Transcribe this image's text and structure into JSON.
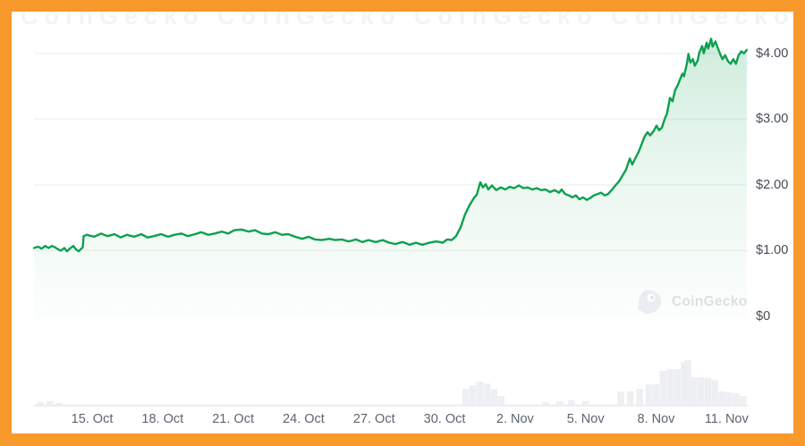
{
  "watermark": {
    "text": "CoinGecko"
  },
  "top_tile": {
    "text": "CoinGecko"
  },
  "colors": {
    "frame_border": "#f8992c",
    "line": "#0ca04f",
    "fill_top": "rgba(12,160,79,0.20)",
    "fill_mid": "rgba(12,160,79,0.09)",
    "fill_bottom": "rgba(12,160,79,0.01)",
    "gridline": "#f3f4f6",
    "volume_bar": "#edeff2",
    "y_label": "#464c55",
    "x_label": "#5e6570",
    "watermark_text": "#dcdfe4",
    "watermark_icon": "#e9edf0"
  },
  "chart_data": {
    "type": "area",
    "title": "",
    "xlabel": "",
    "ylabel": "",
    "legend": "none",
    "grid": "horizontal-faint",
    "y_axis_side": "right",
    "x_range_days": [
      -2.5,
      28.0
    ],
    "y_range": [
      0,
      4.6
    ],
    "y_ticks": [
      {
        "value": 0,
        "label": "$0"
      },
      {
        "value": 1,
        "label": "$1.00"
      },
      {
        "value": 2,
        "label": "$2.00"
      },
      {
        "value": 3,
        "label": "$3.00"
      },
      {
        "value": 4,
        "label": "$4.00"
      }
    ],
    "x_ticks": [
      {
        "t": 0,
        "label": "15. Oct"
      },
      {
        "t": 3,
        "label": "18. Oct"
      },
      {
        "t": 6,
        "label": "21. Oct"
      },
      {
        "t": 9,
        "label": "24. Oct"
      },
      {
        "t": 12,
        "label": "27. Oct"
      },
      {
        "t": 15,
        "label": "30. Oct"
      },
      {
        "t": 18,
        "label": "2. Nov"
      },
      {
        "t": 21,
        "label": "5. Nov"
      },
      {
        "t": 24,
        "label": "8. Nov"
      },
      {
        "t": 27,
        "label": "11. Nov"
      }
    ],
    "series": [
      {
        "name": "price-usd",
        "points": [
          [
            -2.47,
            1.04
          ],
          [
            -2.3,
            1.06
          ],
          [
            -2.15,
            1.03
          ],
          [
            -2.0,
            1.07
          ],
          [
            -1.85,
            1.04
          ],
          [
            -1.71,
            1.07
          ],
          [
            -1.58,
            1.05
          ],
          [
            -1.45,
            1.02
          ],
          [
            -1.33,
            1.0
          ],
          [
            -1.18,
            1.04
          ],
          [
            -1.07,
            0.99
          ],
          [
            -0.95,
            1.03
          ],
          [
            -0.8,
            1.07
          ],
          [
            -0.69,
            1.02
          ],
          [
            -0.57,
            0.99
          ],
          [
            -0.46,
            1.03
          ],
          [
            -0.4,
            1.05
          ],
          [
            -0.36,
            1.22
          ],
          [
            -0.23,
            1.24
          ],
          [
            0.08,
            1.21
          ],
          [
            0.38,
            1.26
          ],
          [
            0.65,
            1.22
          ],
          [
            0.95,
            1.25
          ],
          [
            1.22,
            1.2
          ],
          [
            1.48,
            1.24
          ],
          [
            1.79,
            1.21
          ],
          [
            2.09,
            1.25
          ],
          [
            2.36,
            1.2
          ],
          [
            2.63,
            1.22
          ],
          [
            2.93,
            1.25
          ],
          [
            3.24,
            1.21
          ],
          [
            3.5,
            1.24
          ],
          [
            3.81,
            1.26
          ],
          [
            4.07,
            1.22
          ],
          [
            4.38,
            1.25
          ],
          [
            4.64,
            1.28
          ],
          [
            4.95,
            1.24
          ],
          [
            5.21,
            1.26
          ],
          [
            5.52,
            1.29
          ],
          [
            5.79,
            1.26
          ],
          [
            6.05,
            1.31
          ],
          [
            6.36,
            1.32
          ],
          [
            6.66,
            1.29
          ],
          [
            6.93,
            1.31
          ],
          [
            7.23,
            1.26
          ],
          [
            7.5,
            1.25
          ],
          [
            7.8,
            1.28
          ],
          [
            8.07,
            1.24
          ],
          [
            8.34,
            1.25
          ],
          [
            8.64,
            1.21
          ],
          [
            8.94,
            1.18
          ],
          [
            9.21,
            1.21
          ],
          [
            9.48,
            1.17
          ],
          [
            9.78,
            1.16
          ],
          [
            10.09,
            1.18
          ],
          [
            10.35,
            1.16
          ],
          [
            10.62,
            1.17
          ],
          [
            10.92,
            1.14
          ],
          [
            11.23,
            1.17
          ],
          [
            11.5,
            1.13
          ],
          [
            11.76,
            1.16
          ],
          [
            12.07,
            1.13
          ],
          [
            12.37,
            1.16
          ],
          [
            12.64,
            1.12
          ],
          [
            12.9,
            1.1
          ],
          [
            13.21,
            1.13
          ],
          [
            13.51,
            1.09
          ],
          [
            13.78,
            1.12
          ],
          [
            14.05,
            1.09
          ],
          [
            14.35,
            1.12
          ],
          [
            14.65,
            1.14
          ],
          [
            14.92,
            1.12
          ],
          [
            15.11,
            1.17
          ],
          [
            15.3,
            1.16
          ],
          [
            15.49,
            1.22
          ],
          [
            15.68,
            1.35
          ],
          [
            15.87,
            1.55
          ],
          [
            16.06,
            1.69
          ],
          [
            16.25,
            1.8
          ],
          [
            16.37,
            1.85
          ],
          [
            16.52,
            2.04
          ],
          [
            16.63,
            1.96
          ],
          [
            16.75,
            2.01
          ],
          [
            16.86,
            1.93
          ],
          [
            17.01,
            1.99
          ],
          [
            17.2,
            1.92
          ],
          [
            17.39,
            1.96
          ],
          [
            17.58,
            1.93
          ],
          [
            17.77,
            1.97
          ],
          [
            17.96,
            1.95
          ],
          [
            18.16,
            1.99
          ],
          [
            18.35,
            1.95
          ],
          [
            18.54,
            1.96
          ],
          [
            18.73,
            1.93
          ],
          [
            18.92,
            1.95
          ],
          [
            19.11,
            1.92
          ],
          [
            19.3,
            1.93
          ],
          [
            19.49,
            1.89
          ],
          [
            19.68,
            1.92
          ],
          [
            19.87,
            1.88
          ],
          [
            19.98,
            1.93
          ],
          [
            20.13,
            1.86
          ],
          [
            20.29,
            1.84
          ],
          [
            20.44,
            1.81
          ],
          [
            20.59,
            1.84
          ],
          [
            20.74,
            1.78
          ],
          [
            20.89,
            1.81
          ],
          [
            21.05,
            1.77
          ],
          [
            21.2,
            1.8
          ],
          [
            21.35,
            1.84
          ],
          [
            21.51,
            1.86
          ],
          [
            21.66,
            1.88
          ],
          [
            21.81,
            1.84
          ],
          [
            21.96,
            1.86
          ],
          [
            22.11,
            1.92
          ],
          [
            22.27,
            1.99
          ],
          [
            22.42,
            2.05
          ],
          [
            22.57,
            2.14
          ],
          [
            22.72,
            2.23
          ],
          [
            22.88,
            2.4
          ],
          [
            22.99,
            2.31
          ],
          [
            23.14,
            2.42
          ],
          [
            23.26,
            2.5
          ],
          [
            23.41,
            2.64
          ],
          [
            23.52,
            2.74
          ],
          [
            23.64,
            2.8
          ],
          [
            23.75,
            2.75
          ],
          [
            23.9,
            2.82
          ],
          [
            24.02,
            2.9
          ],
          [
            24.13,
            2.83
          ],
          [
            24.25,
            2.87
          ],
          [
            24.36,
            2.99
          ],
          [
            24.47,
            3.09
          ],
          [
            24.59,
            3.32
          ],
          [
            24.7,
            3.27
          ],
          [
            24.81,
            3.44
          ],
          [
            24.93,
            3.52
          ],
          [
            25.04,
            3.62
          ],
          [
            25.12,
            3.69
          ],
          [
            25.19,
            3.65
          ],
          [
            25.31,
            3.84
          ],
          [
            25.38,
            3.99
          ],
          [
            25.46,
            3.86
          ],
          [
            25.57,
            3.91
          ],
          [
            25.65,
            3.81
          ],
          [
            25.77,
            3.89
          ],
          [
            25.84,
            4.01
          ],
          [
            25.96,
            4.11
          ],
          [
            26.03,
            4.0
          ],
          [
            26.15,
            4.16
          ],
          [
            26.22,
            4.07
          ],
          [
            26.34,
            4.22
          ],
          [
            26.41,
            4.1
          ],
          [
            26.53,
            4.18
          ],
          [
            26.64,
            4.07
          ],
          [
            26.75,
            3.97
          ],
          [
            26.83,
            3.91
          ],
          [
            26.94,
            3.97
          ],
          [
            27.06,
            3.88
          ],
          [
            27.17,
            3.84
          ],
          [
            27.29,
            3.91
          ],
          [
            27.4,
            3.84
          ],
          [
            27.51,
            3.97
          ],
          [
            27.63,
            4.03
          ],
          [
            27.74,
            4.0
          ],
          [
            27.86,
            4.05
          ]
        ]
      }
    ],
    "volume_relative": [
      [
        -2.2,
        0.1
      ],
      [
        -1.8,
        0.12
      ],
      [
        -1.45,
        0.08
      ],
      [
        15.9,
        0.38
      ],
      [
        16.2,
        0.46
      ],
      [
        16.5,
        0.54
      ],
      [
        16.8,
        0.5
      ],
      [
        17.1,
        0.38
      ],
      [
        17.4,
        0.23
      ],
      [
        19.3,
        0.1
      ],
      [
        19.9,
        0.12
      ],
      [
        20.4,
        0.14
      ],
      [
        21.0,
        0.12
      ],
      [
        22.5,
        0.33
      ],
      [
        22.9,
        0.33
      ],
      [
        23.3,
        0.38
      ],
      [
        23.7,
        0.48
      ],
      [
        24.0,
        0.48
      ],
      [
        24.3,
        0.77
      ],
      [
        24.6,
        0.81
      ],
      [
        24.9,
        0.81
      ],
      [
        25.2,
        0.96
      ],
      [
        25.35,
        1.0
      ],
      [
        25.6,
        0.63
      ],
      [
        25.9,
        0.63
      ],
      [
        26.2,
        0.62
      ],
      [
        26.5,
        0.58
      ],
      [
        26.8,
        0.33
      ],
      [
        27.1,
        0.31
      ],
      [
        27.4,
        0.29
      ],
      [
        27.7,
        0.23
      ]
    ]
  }
}
